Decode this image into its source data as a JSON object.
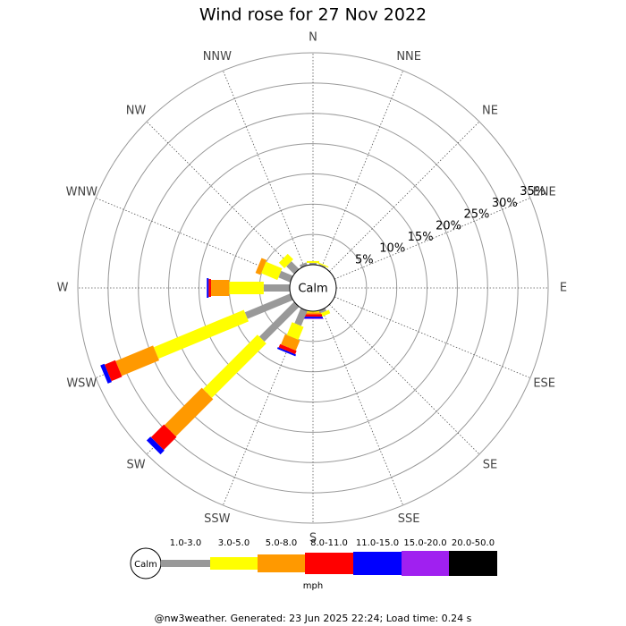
{
  "chart_data": {
    "type": "windrose",
    "title": "Wind rose for 27 Nov 2022",
    "center_label": "Calm",
    "categories": [
      "N",
      "NNE",
      "NE",
      "ENE",
      "E",
      "ESE",
      "SE",
      "SSE",
      "S",
      "SSW",
      "SW",
      "WSW",
      "W",
      "WNW",
      "NW",
      "NNW"
    ],
    "series": [
      {
        "name": "1.0-3.0",
        "color": "#999999",
        "values": [
          0.3,
          0.2,
          0,
          0,
          0,
          0,
          0,
          0.5,
          0,
          2.7,
          8.1,
          8.1,
          4.3,
          2.1,
          1.8,
          0.5
        ]
      },
      {
        "name": "3.0-5.0",
        "color": "#ffff00",
        "values": [
          0.3,
          0.2,
          0,
          0,
          0,
          0,
          0,
          0.6,
          0.2,
          2.3,
          12.7,
          16.1,
          5.7,
          2.9,
          1.3,
          0
        ]
      },
      {
        "name": "5.0-8.0",
        "color": "#ff9900",
        "values": [
          0,
          0,
          0,
          0,
          0,
          0,
          0,
          0,
          0.3,
          1.8,
          8.7,
          6.7,
          3.0,
          0.9,
          0,
          0
        ]
      },
      {
        "name": "8.0-11.0",
        "color": "#ff0000",
        "values": [
          0,
          0,
          0,
          0,
          0,
          0,
          0,
          0,
          0.4,
          0.6,
          3.0,
          1.9,
          0.4,
          0,
          0,
          0
        ]
      },
      {
        "name": "11.0-15.0",
        "color": "#0000ff",
        "values": [
          0,
          0,
          0,
          0,
          0,
          0,
          0,
          0,
          0.3,
          0.3,
          0.9,
          0.7,
          0.3,
          0,
          0,
          0
        ]
      },
      {
        "name": "15.0-20.0",
        "color": "#a020f0",
        "values": [
          0,
          0,
          0,
          0,
          0,
          0,
          0,
          0,
          0.1,
          0,
          0,
          0,
          0,
          0,
          0,
          0
        ]
      },
      {
        "name": "20.0-50.0",
        "color": "#000000",
        "values": [
          0,
          0,
          0,
          0,
          0,
          0,
          0,
          0,
          0,
          0,
          0,
          0,
          0,
          0,
          0,
          0
        ]
      }
    ],
    "rlim": [
      0,
      35
    ],
    "rticks": [
      {
        "value": 5,
        "label": "5%"
      },
      {
        "value": 10,
        "label": "10%"
      },
      {
        "value": 15,
        "label": "15%"
      },
      {
        "value": 20,
        "label": "20%"
      },
      {
        "value": 25,
        "label": "25%"
      },
      {
        "value": 30,
        "label": "30%"
      },
      {
        "value": 35,
        "label": "35%"
      }
    ],
    "legend_unit": "mph",
    "footer": "@nw3weather. Generated: 23 Jun 2025 22:24; Load time: 0.24 s"
  }
}
